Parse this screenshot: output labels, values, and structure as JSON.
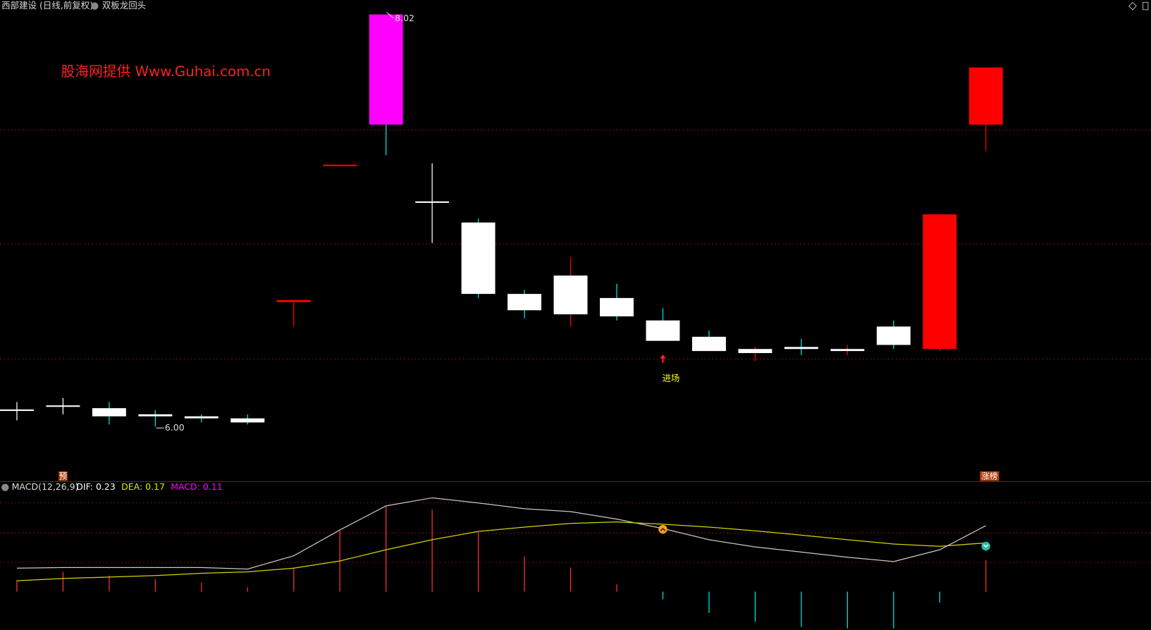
{
  "header": {
    "stock": "西部建设 (日线,前复权)",
    "indicator": "双板龙回头"
  },
  "watermark": "股海网提供  Www.Guhai.com.cn",
  "chart_data": [
    {
      "type": "candlestick",
      "open": [
        6.08,
        6.1,
        6.09,
        6.06,
        6.05,
        6.04,
        6.61,
        7.28,
        7.48,
        7.1,
        7.0,
        6.65,
        6.74,
        6.63,
        6.52,
        6.44,
        6.38,
        6.39,
        6.38,
        6.49,
        6.38,
        7.48
      ],
      "high": [
        6.12,
        6.14,
        6.12,
        6.08,
        6.06,
        6.06,
        6.62,
        7.28,
        8.02,
        7.29,
        7.02,
        6.67,
        6.83,
        6.7,
        6.58,
        6.47,
        6.39,
        6.43,
        6.4,
        6.52,
        7.04,
        7.76
      ],
      "low": [
        6.03,
        6.06,
        6.01,
        6.0,
        6.02,
        6.01,
        6.49,
        7.28,
        7.33,
        6.9,
        6.63,
        6.53,
        6.49,
        6.52,
        6.42,
        6.37,
        6.32,
        6.35,
        6.35,
        6.38,
        6.37,
        7.35
      ],
      "close": [
        6.08,
        6.1,
        6.05,
        6.05,
        6.04,
        6.02,
        6.62,
        7.28,
        8.02,
        7.1,
        6.65,
        6.57,
        6.55,
        6.54,
        6.42,
        6.37,
        6.36,
        6.38,
        6.37,
        6.4,
        7.04,
        7.76
      ],
      "colors": [
        "#ffffff",
        "#ffffff",
        "#ffffff",
        "#ffffff",
        "#ffffff",
        "#ffffff",
        "#ff0000",
        "#ff0000",
        "#ff00ff",
        "#ffffff",
        "#ffffff",
        "#ffffff",
        "#ffffff",
        "#ffffff",
        "#ffffff",
        "#ffffff",
        "#ffffff",
        "#ffffff",
        "#ffffff",
        "#ffffff",
        "#ff0000",
        "#ff0000"
      ],
      "wick_colors": [
        "#ffffff",
        "#ffffff",
        "#00e5e5",
        "#00e5e5",
        "#00e5e5",
        "#00e5e5",
        "#ff0000",
        "#ff0000",
        "#00e5e5",
        "#ffffff",
        "#00e5e5",
        "#00e5e5",
        "#ff0000",
        "#00e5e5",
        "#00e5e5",
        "#00e5e5",
        "#ff0000",
        "#00e5e5",
        "#ff0000",
        "#00e5e5",
        "#ff0000",
        "#ff0000"
      ],
      "ylim": [
        5.73,
        8.09
      ],
      "high_label": "8.02",
      "low_label": "6.00",
      "signal_label": "进场",
      "bottom_labels": [
        "预",
        "涨榜"
      ]
    },
    {
      "type": "macd",
      "title": "MACD(12,26,9)",
      "readouts": [
        {
          "text": "DIF: 0.23",
          "color": "#ffffff"
        },
        {
          "text": "DEA: 0.17",
          "color": "#e6e600"
        },
        {
          "text": "MACD: 0.11",
          "color": "#ff00ff"
        }
      ],
      "series": [
        {
          "name": "DIF",
          "color": "#c8c8c8",
          "values": [
            0.082,
            0.084,
            0.084,
            0.084,
            0.084,
            0.079,
            0.125,
            0.215,
            0.299,
            0.327,
            0.309,
            0.289,
            0.279,
            0.253,
            0.22,
            0.181,
            0.156,
            0.138,
            0.12,
            0.105,
            0.146,
            0.23
          ]
        },
        {
          "name": "DEA",
          "color": "#d4d400",
          "values": [
            0.038,
            0.046,
            0.051,
            0.056,
            0.064,
            0.069,
            0.082,
            0.107,
            0.146,
            0.181,
            0.21,
            0.225,
            0.238,
            0.243,
            0.235,
            0.225,
            0.212,
            0.197,
            0.181,
            0.166,
            0.158,
            0.17
          ]
        }
      ],
      "histogram": [
        0.041,
        0.069,
        0.056,
        0.043,
        0.031,
        0.015,
        0.082,
        0.212,
        0.299,
        0.286,
        0.207,
        0.123,
        0.084,
        0.026,
        -0.026,
        -0.074,
        -0.105,
        -0.123,
        -0.128,
        -0.128,
        -0.038,
        0.11
      ],
      "positive_color": "#ff3232",
      "negative_color": "#00e5e5",
      "ylim": [
        -0.133,
        0.381
      ]
    }
  ]
}
